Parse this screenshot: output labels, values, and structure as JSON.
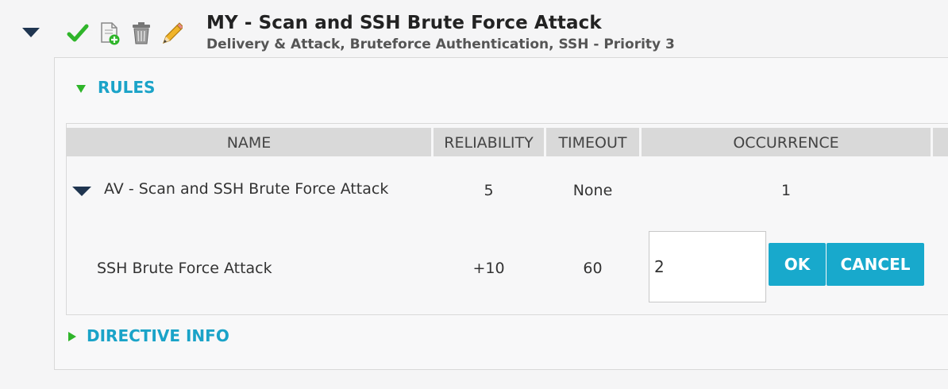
{
  "header": {
    "title": "MY - Scan and SSH Brute Force Attack",
    "subtitle": "Delivery & Attack, Bruteforce Authentication, SSH - Priority 3",
    "toolbar": {
      "enabled_icon": "checkmark-icon",
      "clone_icon": "clone-document-icon",
      "delete_icon": "trash-icon",
      "edit_icon": "pencil-icon"
    }
  },
  "rules": {
    "heading": "RULES",
    "columns": [
      "NAME",
      "RELIABILITY",
      "TIMEOUT",
      "OCCURRENCE"
    ],
    "rows": [
      {
        "name": "AV - Scan and SSH Brute Force Attack",
        "reliability": "5",
        "timeout": "None",
        "occurrence": "1"
      },
      {
        "name": "SSH Brute Force Attack",
        "reliability": "+10",
        "timeout": "60",
        "occurrence_input": "2"
      }
    ],
    "ok_label": "OK",
    "cancel_label": "CANCEL"
  },
  "directive_info": {
    "heading": "DIRECTIVE INFO"
  },
  "colors": {
    "accent": "#1aa3c8",
    "button": "#18a9cc",
    "expander_green": "#2fb52a",
    "collapse_navy": "#1f3550",
    "header_bg": "#d9d9d9"
  }
}
